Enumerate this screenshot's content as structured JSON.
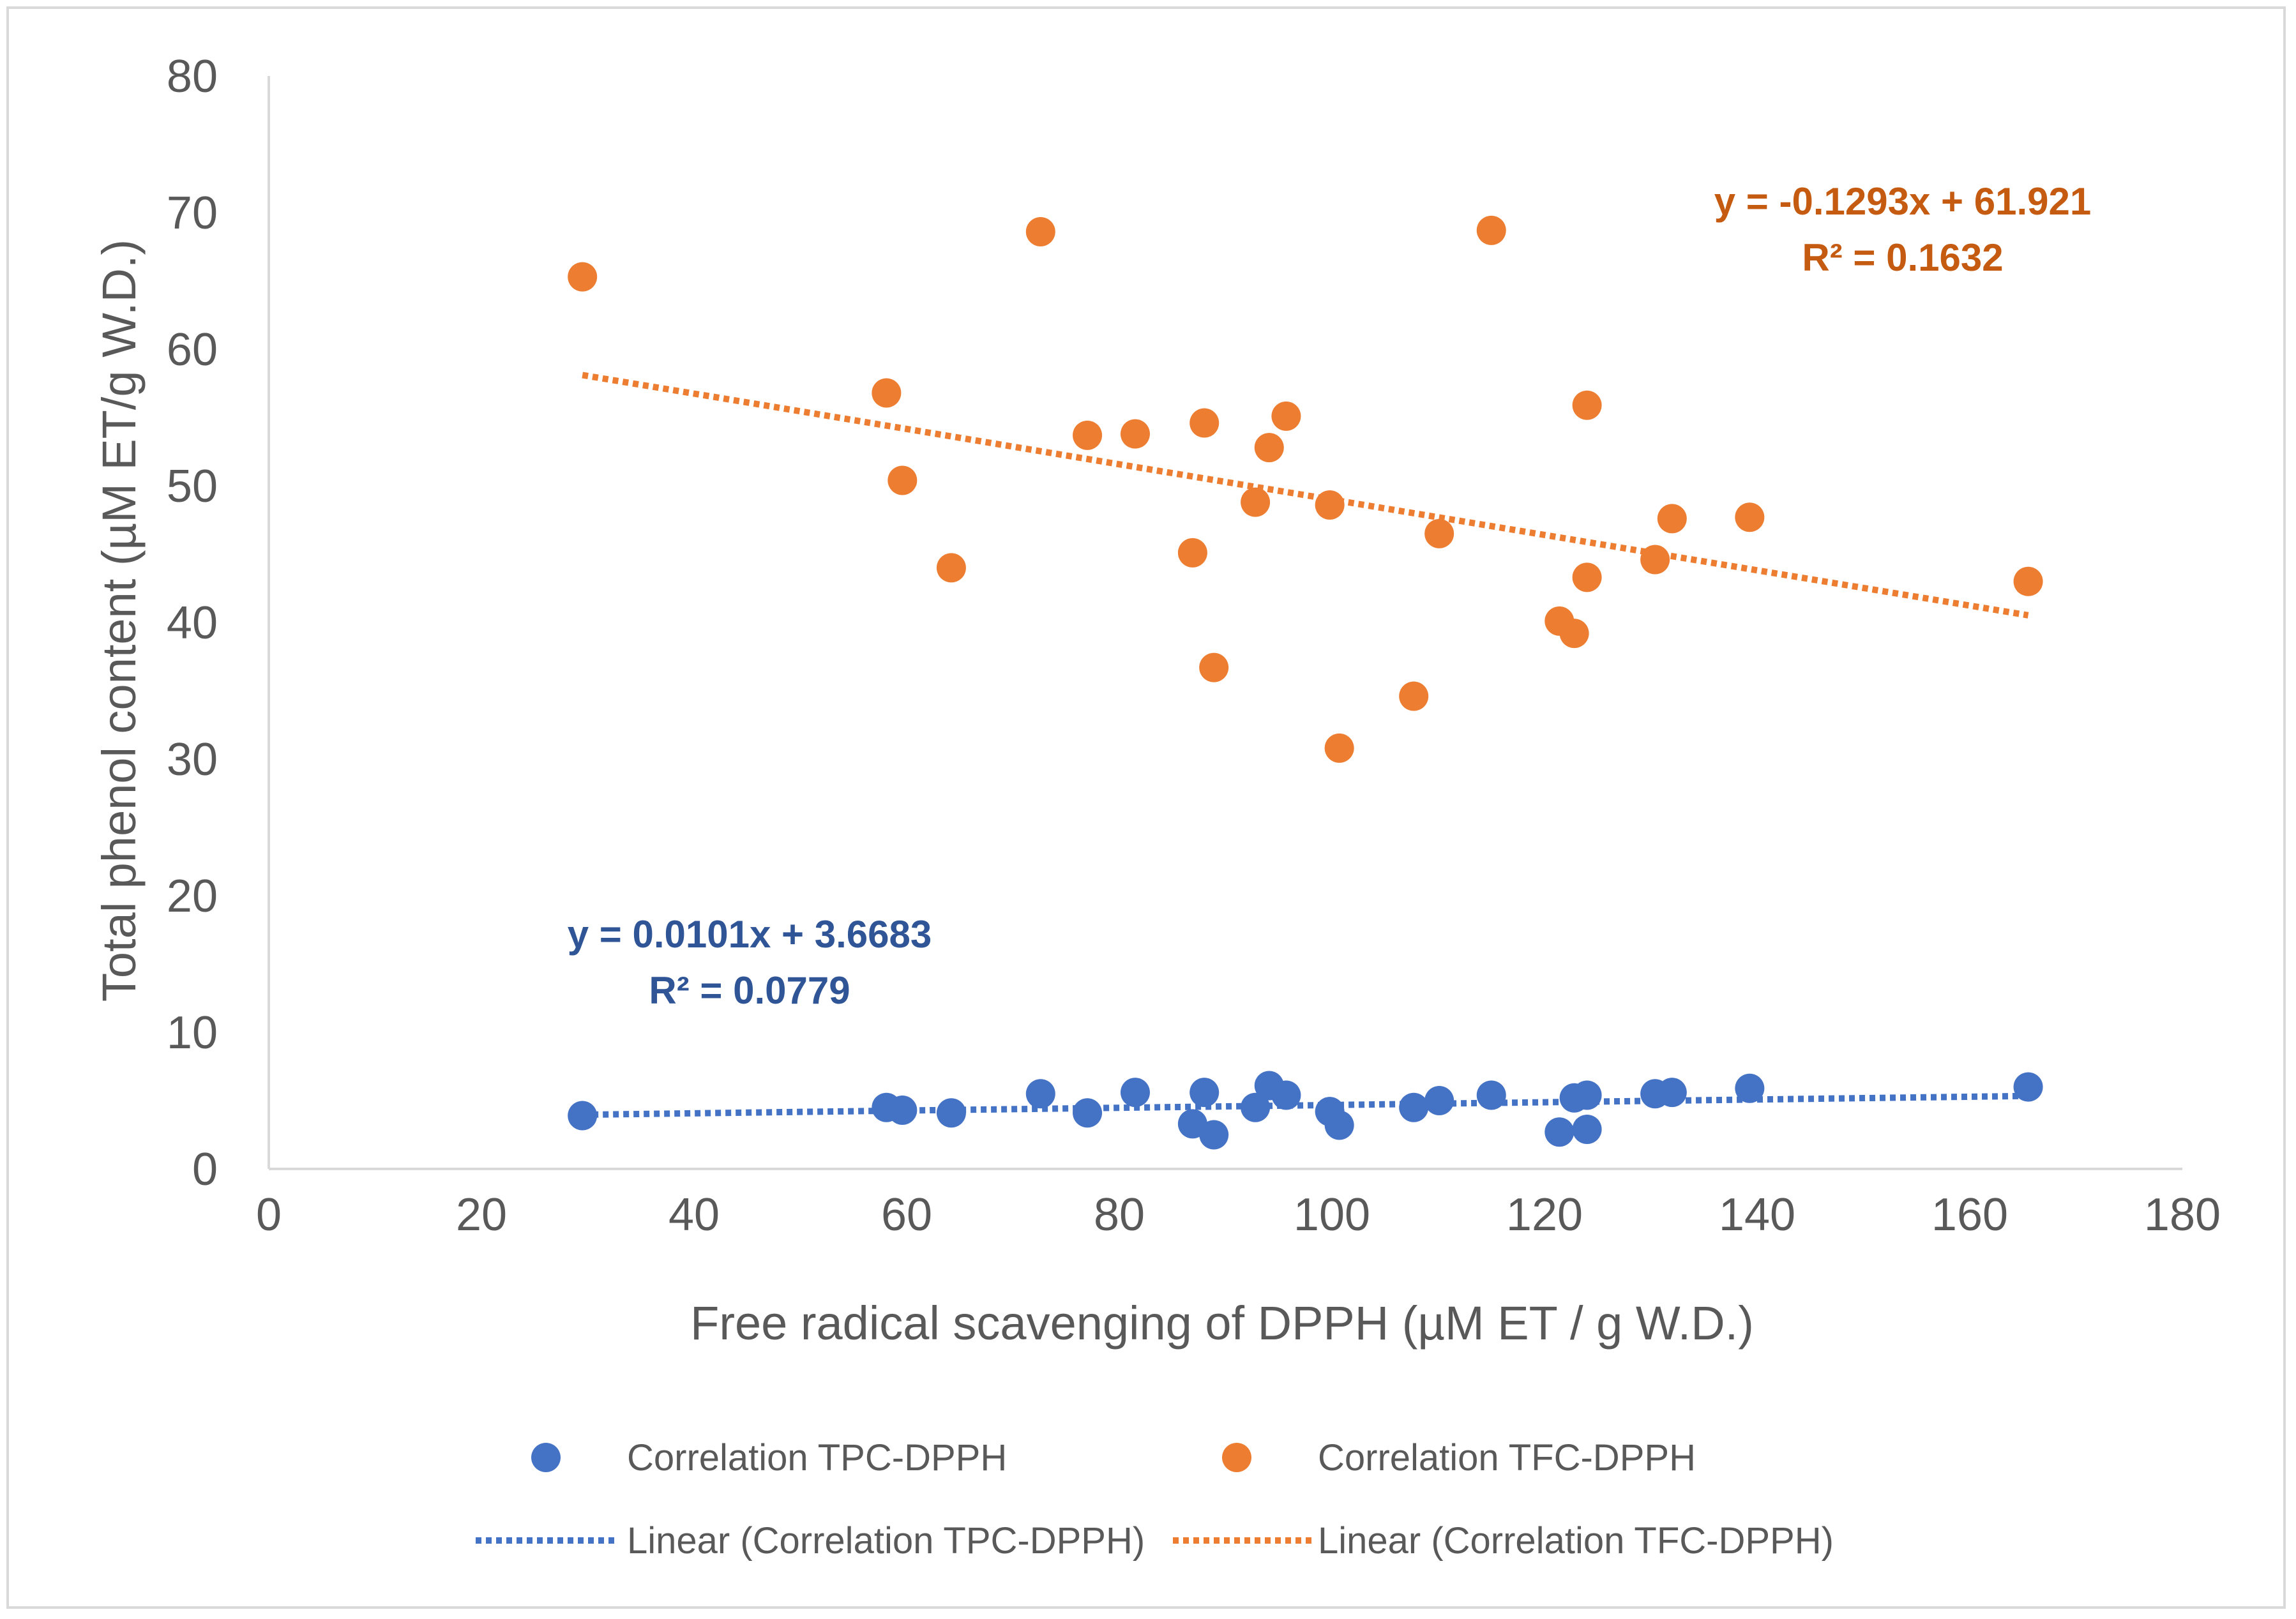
{
  "chart_data": {
    "type": "scatter",
    "title": "",
    "xlabel": "Free radical scavenging of DPPH (µM ET / g W.D.)",
    "ylabel": "Total phenol content (µM ET/g W.D.)",
    "xlim": [
      0,
      180
    ],
    "ylim": [
      0,
      80
    ],
    "xticks": [
      0,
      20,
      40,
      60,
      80,
      100,
      120,
      140,
      160,
      180
    ],
    "yticks": [
      0,
      10,
      20,
      30,
      40,
      50,
      60,
      70,
      80
    ],
    "grid": false,
    "legend_position": "bottom",
    "series": [
      {
        "name": "Correlation TPC-DPPH",
        "color": "#4472c4",
        "trendline_name": "Linear (Correlation TPC-DPPH)",
        "trendline": {
          "slope": 0.0101,
          "intercept": 3.6683,
          "x_range": [
            29.5,
            165.5
          ]
        },
        "equation": "y = 0.0101x + 3.6683",
        "r2": "R² = 0.0779",
        "x": [
          29.5,
          58.1,
          59.6,
          64.2,
          72.6,
          77.0,
          81.5,
          86.9,
          88.0,
          88.9,
          92.8,
          94.1,
          95.7,
          99.8,
          100.7,
          107.7,
          110.1,
          115.0,
          121.4,
          122.8,
          124.0,
          124.0,
          130.4,
          132.0,
          139.3,
          165.5
        ],
        "y": [
          3.9,
          4.5,
          4.3,
          4.1,
          5.5,
          4.1,
          5.6,
          3.3,
          5.6,
          2.5,
          4.5,
          6.1,
          5.4,
          4.2,
          3.2,
          4.5,
          5.0,
          5.4,
          2.7,
          5.2,
          5.4,
          2.9,
          5.5,
          5.6,
          5.9,
          6.0
        ]
      },
      {
        "name": "Correlation TFC-DPPH",
        "color": "#ed7d31",
        "trendline_name": "Linear (Correlation TFC-DPPH)",
        "trendline": {
          "slope": -0.1293,
          "intercept": 61.921,
          "x_range": [
            29.5,
            165.5
          ]
        },
        "equation": "y = -0.1293x + 61.921",
        "r2": "R² = 0.1632",
        "x": [
          29.5,
          58.1,
          59.6,
          64.2,
          72.6,
          77.0,
          81.5,
          86.9,
          88.0,
          88.9,
          92.8,
          94.1,
          95.7,
          99.8,
          100.7,
          107.7,
          110.1,
          115.0,
          121.4,
          122.8,
          124.0,
          124.0,
          130.4,
          132.0,
          139.3,
          165.5
        ],
        "y": [
          65.3,
          56.8,
          50.4,
          44.0,
          68.6,
          53.7,
          53.8,
          45.1,
          54.6,
          36.7,
          48.8,
          52.8,
          55.1,
          48.6,
          30.8,
          34.6,
          46.5,
          68.7,
          40.1,
          39.2,
          55.9,
          43.3,
          44.6,
          47.6,
          47.7,
          43.0
        ]
      }
    ]
  }
}
